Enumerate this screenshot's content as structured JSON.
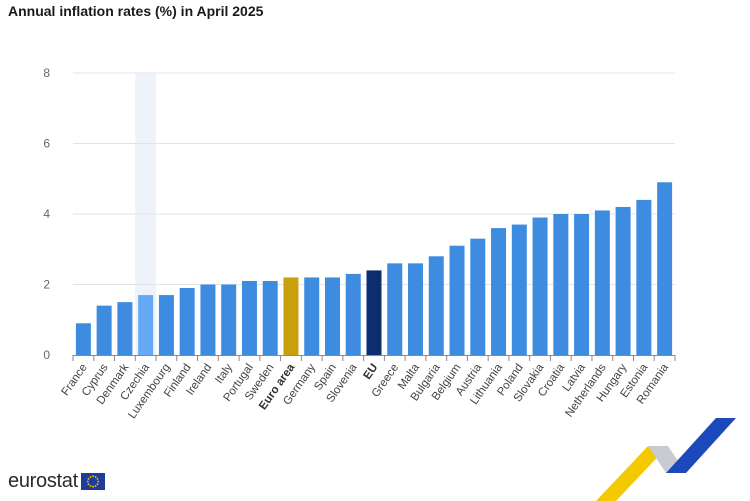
{
  "title": "Annual inflation rates (%) in April 2025",
  "logo": {
    "text": "eurostat",
    "icon": "eu-flag-icon"
  },
  "colors": {
    "bar": "#3d8ce0",
    "highlight_bar": "#66aaf5",
    "euro_area": "#c8a00b",
    "eu": "#0e2d6e",
    "grid": "#e4e4e4",
    "hover_band": "#eef2fb"
  },
  "chart_data": {
    "type": "bar",
    "title": "Annual inflation rates (%) in April 2025",
    "xlabel": "",
    "ylabel": "",
    "ylim": [
      0,
      8
    ],
    "yticks": [
      0,
      2,
      4,
      6,
      8
    ],
    "grid": true,
    "highlighted_category": "Czechia",
    "categories": [
      "France",
      "Cyprus",
      "Denmark",
      "Czechia",
      "Luxembourg",
      "Finland",
      "Ireland",
      "Italy",
      "Portugal",
      "Sweden",
      "Euro area",
      "Germany",
      "Spain",
      "Slovenia",
      "EU",
      "Greece",
      "Malta",
      "Bulgaria",
      "Belgium",
      "Austria",
      "Lithuania",
      "Poland",
      "Slovakia",
      "Croatia",
      "Latvia",
      "Netherlands",
      "Hungary",
      "Estonia",
      "Romania"
    ],
    "values": [
      0.9,
      1.4,
      1.5,
      1.7,
      1.7,
      1.9,
      2.0,
      2.0,
      2.1,
      2.1,
      2.2,
      2.2,
      2.2,
      2.3,
      2.4,
      2.6,
      2.6,
      2.8,
      3.1,
      3.3,
      3.6,
      3.7,
      3.9,
      4.0,
      4.0,
      4.1,
      4.2,
      4.4,
      4.9
    ],
    "bold_categories": [
      "Euro area",
      "EU"
    ]
  }
}
